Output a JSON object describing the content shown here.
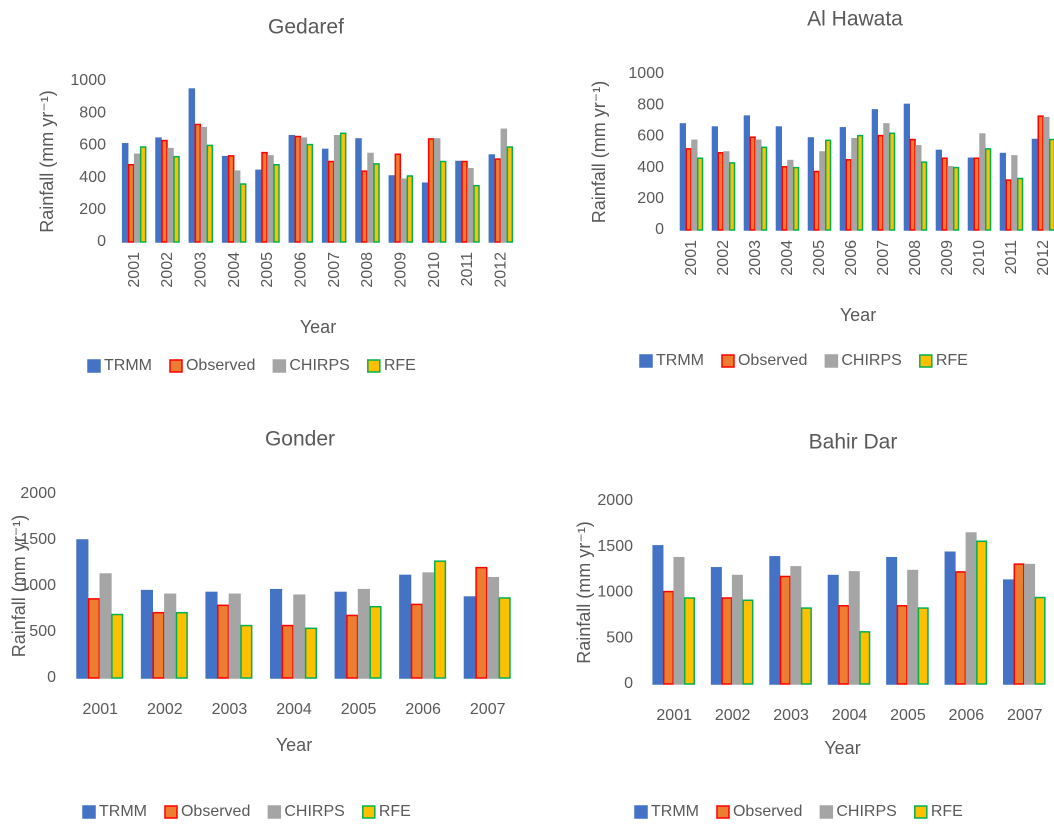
{
  "chart_data": [
    {
      "type": "bar",
      "title": "Gedaref",
      "x_label": "Year",
      "y_label": "Rainfall (mm yr⁻¹)",
      "categories": [
        "2001",
        "2002",
        "2003",
        "2004",
        "2005",
        "2006",
        "2007",
        "2008",
        "2009",
        "2010",
        "2011",
        "2012"
      ],
      "series": [
        {
          "name": "TRMM",
          "color": "#4472c4",
          "edge_color": "#4472c4",
          "values": [
            610,
            645,
            950,
            530,
            445,
            660,
            575,
            640,
            410,
            365,
            500,
            540
          ]
        },
        {
          "name": "Observed",
          "color": "#ed7d31",
          "edge_color": "#ff0000",
          "values": [
            480,
            630,
            730,
            535,
            555,
            655,
            500,
            440,
            545,
            640,
            500,
            515
          ]
        },
        {
          "name": "CHIRPS",
          "color": "#a5a5a5",
          "edge_color": "#a5a5a5",
          "values": [
            545,
            580,
            710,
            440,
            535,
            645,
            660,
            550,
            390,
            640,
            455,
            700
          ]
        },
        {
          "name": "RFE",
          "color": "#ffc000",
          "edge_color": "#00b050",
          "values": [
            590,
            530,
            600,
            360,
            480,
            605,
            675,
            485,
            410,
            500,
            350,
            590
          ]
        }
      ],
      "ylim": [
        0,
        1000
      ],
      "yticks": [
        0,
        200,
        400,
        600,
        800,
        1000
      ],
      "grid": false,
      "legend": "bottom"
    },
    {
      "type": "bar",
      "title": "Al Hawata",
      "x_label": "Year",
      "y_label": "Rainfall (mm yr⁻¹)",
      "categories": [
        "2001",
        "2002",
        "2003",
        "2004",
        "2005",
        "2006",
        "2007",
        "2008",
        "2009",
        "2010",
        "2011",
        "2012"
      ],
      "series": [
        {
          "name": "TRMM",
          "color": "#4472c4",
          "edge_color": "#4472c4",
          "values": [
            680,
            660,
            730,
            660,
            590,
            655,
            770,
            805,
            510,
            460,
            490,
            580
          ]
        },
        {
          "name": "Observed",
          "color": "#ed7d31",
          "edge_color": "#ff0000",
          "values": [
            520,
            495,
            595,
            405,
            375,
            450,
            605,
            580,
            460,
            460,
            320,
            730
          ]
        },
        {
          "name": "CHIRPS",
          "color": "#a5a5a5",
          "edge_color": "#a5a5a5",
          "values": [
            575,
            500,
            575,
            445,
            500,
            585,
            680,
            540,
            405,
            615,
            475,
            720
          ]
        },
        {
          "name": "RFE",
          "color": "#ffc000",
          "edge_color": "#00b050",
          "values": [
            460,
            430,
            530,
            400,
            575,
            605,
            620,
            435,
            400,
            520,
            330,
            580
          ]
        }
      ],
      "ylim": [
        0,
        1000
      ],
      "yticks": [
        0,
        200,
        400,
        600,
        800,
        1000
      ],
      "grid": false,
      "legend": "bottom"
    },
    {
      "type": "bar",
      "title": "Gonder",
      "x_label": "Year",
      "y_label": "Rainfall (mm yr⁻¹)",
      "categories": [
        "2001",
        "2002",
        "2003",
        "2004",
        "2005",
        "2006",
        "2007"
      ],
      "series": [
        {
          "name": "TRMM",
          "color": "#4472c4",
          "edge_color": "#4472c4",
          "values": [
            1500,
            950,
            930,
            960,
            930,
            1115,
            880
          ]
        },
        {
          "name": "Observed",
          "color": "#ed7d31",
          "edge_color": "#ff0000",
          "values": [
            860,
            710,
            790,
            570,
            680,
            800,
            1200
          ]
        },
        {
          "name": "CHIRPS",
          "color": "#a5a5a5",
          "edge_color": "#a5a5a5",
          "values": [
            1130,
            910,
            910,
            900,
            960,
            1140,
            1090
          ]
        },
        {
          "name": "RFE",
          "color": "#ffc000",
          "edge_color": "#00b050",
          "values": [
            690,
            710,
            570,
            540,
            775,
            1270,
            870
          ]
        }
      ],
      "ylim": [
        0,
        2000
      ],
      "yticks": [
        0,
        500,
        1000,
        1500,
        2000
      ],
      "grid": false,
      "legend": "bottom"
    },
    {
      "type": "bar",
      "title": "Bahir Dar",
      "x_label": "Year",
      "y_label": "Rainfall (mm yr⁻¹)",
      "categories": [
        "2001",
        "2002",
        "2003",
        "2004",
        "2005",
        "2006",
        "2007"
      ],
      "series": [
        {
          "name": "TRMM",
          "color": "#4472c4",
          "edge_color": "#4472c4",
          "values": [
            1510,
            1270,
            1390,
            1185,
            1380,
            1440,
            1135
          ]
        },
        {
          "name": "Observed",
          "color": "#ed7d31",
          "edge_color": "#ff0000",
          "values": [
            1010,
            940,
            1175,
            855,
            855,
            1225,
            1310
          ]
        },
        {
          "name": "CHIRPS",
          "color": "#a5a5a5",
          "edge_color": "#a5a5a5",
          "values": [
            1380,
            1185,
            1280,
            1225,
            1240,
            1650,
            1305
          ]
        },
        {
          "name": "RFE",
          "color": "#ffc000",
          "edge_color": "#00b050",
          "values": [
            940,
            915,
            830,
            570,
            830,
            1560,
            945
          ]
        }
      ],
      "ylim": [
        0,
        2000
      ],
      "yticks": [
        0,
        500,
        1000,
        1500,
        2000
      ],
      "grid": false,
      "legend": "bottom"
    }
  ]
}
